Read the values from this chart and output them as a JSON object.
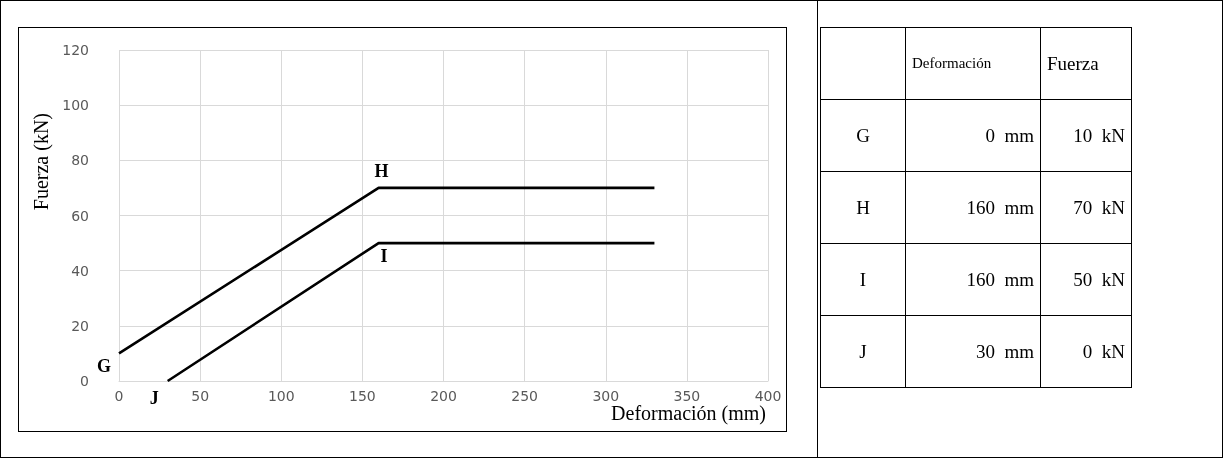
{
  "chart_data": [
    {
      "type": "line",
      "xlabel": "Deformación (mm)",
      "ylabel": "Fuerza (kN)",
      "xlim": [
        0,
        400
      ],
      "xticks": [
        0,
        50,
        100,
        150,
        200,
        250,
        300,
        350,
        400
      ],
      "ylim": [
        0,
        120
      ],
      "yticks": [
        0,
        20,
        40,
        60,
        80,
        100,
        120
      ],
      "grid": true,
      "marker": "none",
      "line_style": "solid",
      "series": [
        {
          "color": "#000000",
          "x": [
            0,
            160,
            330
          ],
          "values": [
            10,
            70,
            70
          ]
        },
        {
          "color": "#000000",
          "x": [
            30,
            160,
            330
          ],
          "values": [
            0,
            50,
            50
          ]
        }
      ],
      "annotations": [
        {
          "text": "G",
          "x": 0,
          "y": 10
        },
        {
          "text": "H",
          "x": 160,
          "y": 70
        },
        {
          "text": "I",
          "x": 160,
          "y": 50
        },
        {
          "text": "J",
          "x": 30,
          "y": 0
        }
      ]
    },
    {
      "type": "other",
      "categories": [
        "Deformación",
        "Fuerza"
      ],
      "y_categories": [
        "G",
        "H",
        "I",
        "J"
      ],
      "cell_labels": [
        [
          "0  mm",
          "10  kN"
        ],
        [
          "160  mm",
          "70  kN"
        ],
        [
          "160  mm",
          "50  kN"
        ],
        [
          "30  mm",
          "0  kN"
        ]
      ]
    }
  ]
}
